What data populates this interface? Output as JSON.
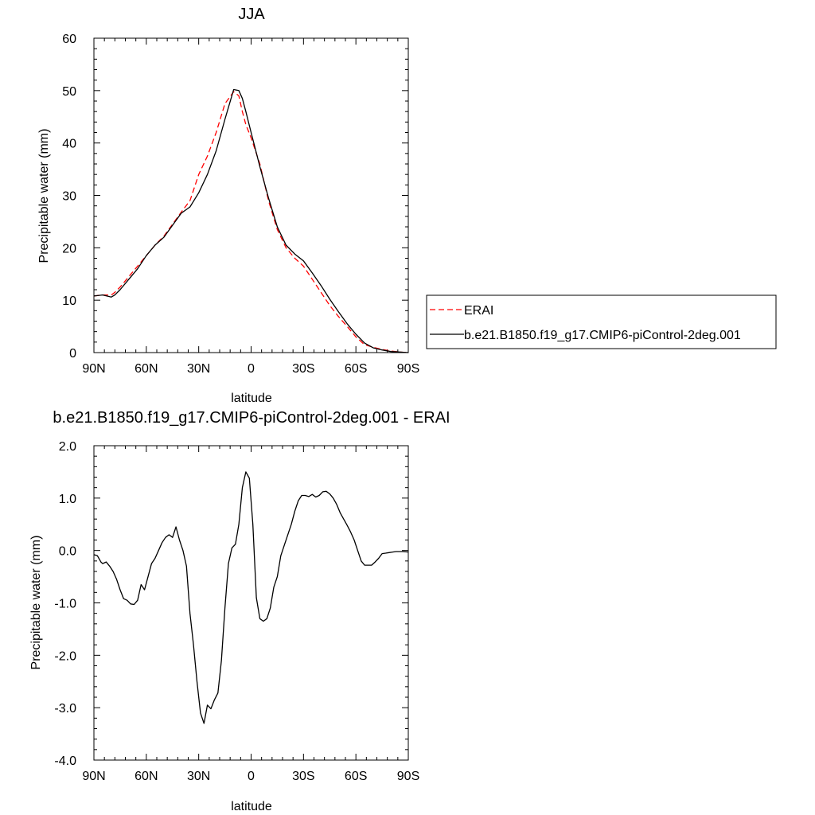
{
  "chart_data": [
    {
      "type": "line",
      "title": "JJA",
      "xlabel": "latitude",
      "ylabel": "Precipitable water (mm)",
      "xlim": [
        90,
        -90
      ],
      "ylim": [
        0,
        60
      ],
      "xticks": [
        90,
        60,
        30,
        0,
        -30,
        -60,
        -90
      ],
      "xtick_labels": [
        "90N",
        "60N",
        "30N",
        "0",
        "30S",
        "60S",
        "90S"
      ],
      "yticks": [
        0,
        10,
        20,
        30,
        40,
        50,
        60
      ],
      "ytick_labels": [
        "0",
        "10",
        "20",
        "30",
        "40",
        "50",
        "60"
      ],
      "grid": false,
      "legend_position": "right",
      "series": [
        {
          "name": "ERAI",
          "color": "#ff0000",
          "dash": "dashed",
          "x": [
            90,
            85,
            80,
            78,
            75,
            70,
            65,
            60,
            55,
            50,
            45,
            40,
            35,
            30,
            25,
            20,
            15,
            10,
            7,
            5,
            3,
            0,
            -5,
            -10,
            -15,
            -20,
            -25,
            -30,
            -35,
            -40,
            -45,
            -50,
            -55,
            -60,
            -65,
            -70,
            -75,
            -80,
            -85,
            -90
          ],
          "y": [
            10.8,
            11.0,
            11.0,
            11.5,
            12.5,
            14.5,
            16.5,
            18.5,
            20.5,
            22.2,
            24.5,
            26.8,
            29.0,
            34.0,
            37.5,
            42.0,
            47.5,
            49.8,
            49.0,
            46.0,
            43.5,
            41.0,
            36.0,
            29.0,
            23.5,
            20.0,
            18.0,
            16.5,
            14.0,
            11.5,
            9.0,
            6.9,
            5.0,
            3.0,
            1.5,
            1.0,
            0.6,
            0.3,
            0.1,
            0.0
          ]
        },
        {
          "name": "b.e21.B1850.f19_g17.CMIP6-piControl-2deg.001",
          "color": "#000000",
          "dash": "solid",
          "x": [
            90,
            85,
            80,
            78,
            75,
            70,
            65,
            60,
            55,
            50,
            45,
            40,
            35,
            30,
            25,
            20,
            15,
            10,
            7,
            5,
            3,
            0,
            -5,
            -10,
            -15,
            -20,
            -25,
            -30,
            -35,
            -40,
            -45,
            -50,
            -55,
            -60,
            -65,
            -70,
            -75,
            -80,
            -85,
            -90
          ],
          "y": [
            10.8,
            11.0,
            10.6,
            11.0,
            12.0,
            14.0,
            16.0,
            18.5,
            20.5,
            22.0,
            24.3,
            26.6,
            27.8,
            30.5,
            34.0,
            38.5,
            44.5,
            50.2,
            50.0,
            48.5,
            46.0,
            42.0,
            35.5,
            29.5,
            24.0,
            20.5,
            18.8,
            17.5,
            15.2,
            12.8,
            10.2,
            7.8,
            5.5,
            3.5,
            1.8,
            0.9,
            0.5,
            0.2,
            0.1,
            0.0
          ]
        }
      ]
    },
    {
      "type": "line",
      "title": "b.e21.B1850.f19_g17.CMIP6-piControl-2deg.001 - ERAI",
      "xlabel": "latitude",
      "ylabel": "Precipitable water (mm)",
      "xlim": [
        90,
        -90
      ],
      "ylim": [
        -4.0,
        2.0
      ],
      "xticks": [
        90,
        60,
        30,
        0,
        -30,
        -60,
        -90
      ],
      "xtick_labels": [
        "90N",
        "60N",
        "30N",
        "0",
        "30S",
        "60S",
        "90S"
      ],
      "yticks": [
        -4.0,
        -3.0,
        -2.0,
        -1.0,
        0.0,
        1.0,
        2.0
      ],
      "ytick_labels": [
        "-4.0",
        "-3.0",
        "-2.0",
        "-1.0",
        "0.0",
        "1.0",
        "2.0"
      ],
      "grid": false,
      "series": [
        {
          "color": "#000000",
          "dash": "solid",
          "x": [
            90,
            88,
            86,
            85,
            83,
            81,
            79,
            77,
            75,
            73,
            71,
            69,
            67,
            65,
            63,
            61,
            59,
            57,
            55,
            53,
            51,
            49,
            47,
            45,
            43,
            41,
            39,
            37,
            35,
            33,
            31,
            29,
            27,
            25,
            23,
            21,
            19,
            17,
            15,
            13,
            11,
            9,
            7,
            5,
            3,
            1,
            -1,
            -3,
            -5,
            -7,
            -9,
            -11,
            -13,
            -15,
            -17,
            -19,
            -21,
            -23,
            -25,
            -27,
            -29,
            -31,
            -33,
            -35,
            -37,
            -39,
            -41,
            -43,
            -45,
            -47,
            -49,
            -51,
            -53,
            -55,
            -57,
            -59,
            -61,
            -63,
            -65,
            -67,
            -69,
            -71,
            -73,
            -75,
            -77,
            -79,
            -81,
            -83,
            -85,
            -87,
            -90
          ],
          "y": [
            -0.08,
            -0.1,
            -0.22,
            -0.25,
            -0.22,
            -0.3,
            -0.4,
            -0.55,
            -0.75,
            -0.92,
            -0.95,
            -1.02,
            -1.03,
            -0.95,
            -0.65,
            -0.75,
            -0.5,
            -0.25,
            -0.15,
            0.0,
            0.15,
            0.25,
            0.3,
            0.25,
            0.45,
            0.2,
            0.0,
            -0.3,
            -1.2,
            -1.8,
            -2.5,
            -3.1,
            -3.3,
            -2.95,
            -3.02,
            -2.85,
            -2.72,
            -2.1,
            -1.1,
            -0.25,
            0.05,
            0.12,
            0.5,
            1.2,
            1.5,
            1.38,
            0.5,
            -0.9,
            -1.3,
            -1.35,
            -1.3,
            -1.1,
            -0.7,
            -0.5,
            -0.1,
            0.1,
            0.3,
            0.5,
            0.75,
            0.95,
            1.05,
            1.05,
            1.03,
            1.07,
            1.02,
            1.05,
            1.12,
            1.13,
            1.08,
            1.0,
            0.88,
            0.72,
            0.6,
            0.48,
            0.35,
            0.2,
            0.0,
            -0.2,
            -0.28,
            -0.28,
            -0.28,
            -0.22,
            -0.15,
            -0.06,
            -0.05,
            -0.04,
            -0.03,
            -0.02,
            -0.02,
            -0.02,
            -0.03
          ]
        }
      ]
    }
  ]
}
